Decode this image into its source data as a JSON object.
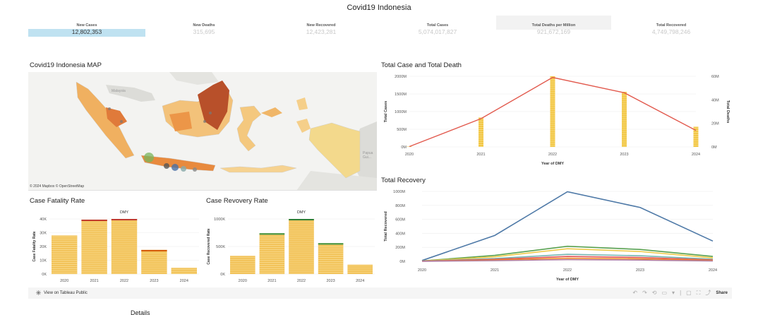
{
  "title": "Covid19 Indonesia",
  "kpis": [
    {
      "label": "New Cases",
      "value": "12,802,353"
    },
    {
      "label": "New Deaths",
      "value": "315,695"
    },
    {
      "label": "New Recovered",
      "value": "12,423,281"
    },
    {
      "label": "Total Cases",
      "value": "5,074,017,827"
    },
    {
      "label": "Total Deaths per Million",
      "value": "921,672,169"
    },
    {
      "label": "Total Recovered",
      "value": "4,749,798,246"
    }
  ],
  "map": {
    "title": "Covid19 Indonesia MAP",
    "credit": "© 2024 Mapbox  © OpenStreetMap",
    "labels": {
      "malaysia": "Malaysia",
      "papua": "Papua Gui..."
    }
  },
  "footer": {
    "view_link": "View on Tableau Public",
    "share": "Share"
  },
  "details_label": "Details",
  "colors": {
    "accent_line": "#e25a4e",
    "bar_yellow": "#f2c744",
    "recovery_blue": "#4e79a7",
    "kpi_highlight": "#bfe2f1"
  },
  "chart_data": [
    {
      "id": "case_death",
      "type": "bar",
      "title": "Total Case and Total Death",
      "categories": [
        "2020",
        "2021",
        "2022",
        "2023",
        "2024"
      ],
      "xlabel": "Year of DMY",
      "ylabel": "Total Cases",
      "y2label": "Total Deaths",
      "ylim": [
        0,
        2000
      ],
      "y2lim": [
        0,
        60
      ],
      "yticks": [
        "0M",
        "500M",
        "1000M",
        "1500M",
        "2000M"
      ],
      "y2ticks": [
        "0M",
        "20M",
        "40M",
        "60M"
      ],
      "series": [
        {
          "name": "Total Cases",
          "type": "bar",
          "axis": "left",
          "values": [
            10,
            830,
            2000,
            1560,
            570
          ]
        },
        {
          "name": "Total Deaths",
          "type": "line",
          "axis": "right",
          "values": [
            0.3,
            24,
            59,
            46,
            14
          ]
        }
      ]
    },
    {
      "id": "recovery",
      "type": "line",
      "title": "Total Recovery",
      "categories": [
        "2020",
        "2021",
        "2022",
        "2023",
        "2024"
      ],
      "xlabel": "Year of DMY",
      "ylabel": "Total Recovered",
      "ylim": [
        0,
        1000
      ],
      "yticks": [
        "0M",
        "200M",
        "400M",
        "600M",
        "800M",
        "1000M"
      ],
      "series": [
        {
          "color": "#4e79a7",
          "values": [
            12,
            370,
            995,
            770,
            290
          ]
        },
        {
          "color": "#59a14f",
          "values": [
            6,
            85,
            215,
            170,
            70
          ]
        },
        {
          "color": "#edc948",
          "values": [
            5,
            65,
            180,
            140,
            50
          ]
        },
        {
          "color": "#76b7b2",
          "values": [
            4,
            40,
            100,
            80,
            30
          ]
        },
        {
          "color": "#e15759",
          "values": [
            3,
            28,
            70,
            55,
            20
          ]
        },
        {
          "color": "#f28e2b",
          "values": [
            2,
            18,
            45,
            35,
            12
          ]
        },
        {
          "color": "#b07aa1",
          "values": [
            1,
            10,
            25,
            18,
            6
          ]
        }
      ]
    },
    {
      "id": "cfr",
      "type": "bar",
      "title": "Case Fatality Rate",
      "header": "DMY",
      "categories": [
        "2020",
        "2021",
        "2022",
        "2023",
        "2024"
      ],
      "ylabel": "Case Fatality Rate",
      "ylim": [
        0,
        40
      ],
      "yticks": [
        "0K",
        "10K",
        "20K",
        "30K",
        "40K"
      ],
      "values": [
        28,
        39.5,
        40,
        17.5,
        4.5
      ]
    },
    {
      "id": "crr",
      "type": "bar",
      "title": "Case Revovery Rate",
      "header": "DMY",
      "categories": [
        "2020",
        "2021",
        "2022",
        "2023",
        "2024"
      ],
      "ylabel": "Case Recovered Rate",
      "ylim": [
        0,
        1000
      ],
      "yticks": [
        "0K",
        "500K",
        "1000K"
      ],
      "values": [
        330,
        740,
        1000,
        560,
        170
      ]
    }
  ]
}
